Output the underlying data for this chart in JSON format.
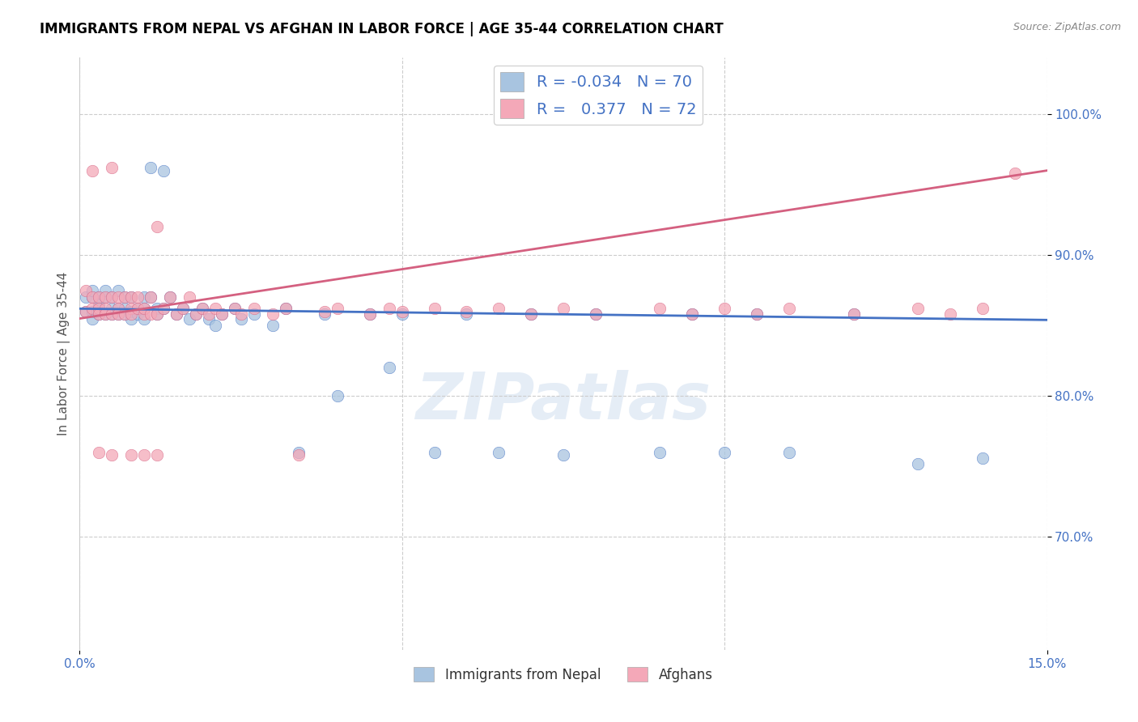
{
  "title": "IMMIGRANTS FROM NEPAL VS AFGHAN IN LABOR FORCE | AGE 35-44 CORRELATION CHART",
  "source": "Source: ZipAtlas.com",
  "ylabel": "In Labor Force | Age 35-44",
  "ytick_values": [
    0.7,
    0.8,
    0.9,
    1.0
  ],
  "xlim": [
    0.0,
    0.15
  ],
  "ylim": [
    0.62,
    1.04
  ],
  "legend_nepal_R": "-0.034",
  "legend_nepal_N": "70",
  "legend_afghan_R": "0.377",
  "legend_afghan_N": "72",
  "nepal_color": "#a8c4e0",
  "afghan_color": "#f4a8b8",
  "nepal_line_color": "#4472c4",
  "afghan_line_color": "#d46080",
  "watermark": "ZIPatlas",
  "nepal_x": [
    0.001,
    0.001,
    0.002,
    0.002,
    0.002,
    0.002,
    0.003,
    0.003,
    0.003,
    0.003,
    0.004,
    0.004,
    0.004,
    0.005,
    0.005,
    0.005,
    0.006,
    0.006,
    0.006,
    0.007,
    0.007,
    0.007,
    0.008,
    0.008,
    0.008,
    0.009,
    0.009,
    0.01,
    0.01,
    0.01,
    0.011,
    0.011,
    0.012,
    0.012,
    0.013,
    0.013,
    0.014,
    0.015,
    0.016,
    0.017,
    0.018,
    0.019,
    0.02,
    0.021,
    0.022,
    0.024,
    0.025,
    0.027,
    0.03,
    0.032,
    0.034,
    0.038,
    0.04,
    0.045,
    0.048,
    0.05,
    0.055,
    0.06,
    0.065,
    0.07,
    0.075,
    0.08,
    0.09,
    0.095,
    0.1,
    0.105,
    0.11,
    0.12,
    0.13,
    0.14
  ],
  "nepal_y": [
    0.86,
    0.87,
    0.87,
    0.86,
    0.875,
    0.855,
    0.87,
    0.865,
    0.858,
    0.862,
    0.87,
    0.858,
    0.875,
    0.862,
    0.87,
    0.858,
    0.862,
    0.875,
    0.858,
    0.87,
    0.862,
    0.858,
    0.86,
    0.87,
    0.855,
    0.862,
    0.858,
    0.87,
    0.862,
    0.855,
    0.962,
    0.87,
    0.862,
    0.858,
    0.96,
    0.862,
    0.87,
    0.858,
    0.862,
    0.855,
    0.858,
    0.862,
    0.855,
    0.85,
    0.858,
    0.862,
    0.855,
    0.858,
    0.85,
    0.862,
    0.76,
    0.858,
    0.8,
    0.858,
    0.82,
    0.858,
    0.76,
    0.858,
    0.76,
    0.858,
    0.758,
    0.858,
    0.76,
    0.858,
    0.76,
    0.858,
    0.76,
    0.858,
    0.752,
    0.756
  ],
  "afghan_x": [
    0.001,
    0.001,
    0.002,
    0.002,
    0.002,
    0.003,
    0.003,
    0.003,
    0.004,
    0.004,
    0.004,
    0.005,
    0.005,
    0.005,
    0.006,
    0.006,
    0.006,
    0.007,
    0.007,
    0.008,
    0.008,
    0.008,
    0.009,
    0.009,
    0.01,
    0.01,
    0.011,
    0.011,
    0.012,
    0.012,
    0.013,
    0.014,
    0.015,
    0.016,
    0.017,
    0.018,
    0.019,
    0.02,
    0.021,
    0.022,
    0.024,
    0.025,
    0.027,
    0.03,
    0.032,
    0.034,
    0.038,
    0.04,
    0.045,
    0.048,
    0.05,
    0.055,
    0.06,
    0.065,
    0.07,
    0.075,
    0.08,
    0.09,
    0.095,
    0.1,
    0.105,
    0.11,
    0.12,
    0.13,
    0.135,
    0.14,
    0.145,
    0.003,
    0.005,
    0.008,
    0.01,
    0.012
  ],
  "afghan_y": [
    0.86,
    0.875,
    0.862,
    0.87,
    0.96,
    0.87,
    0.862,
    0.858,
    0.87,
    0.862,
    0.858,
    0.87,
    0.962,
    0.858,
    0.87,
    0.862,
    0.858,
    0.87,
    0.858,
    0.862,
    0.87,
    0.858,
    0.862,
    0.87,
    0.858,
    0.862,
    0.87,
    0.858,
    0.92,
    0.858,
    0.862,
    0.87,
    0.858,
    0.862,
    0.87,
    0.858,
    0.862,
    0.858,
    0.862,
    0.858,
    0.862,
    0.858,
    0.862,
    0.858,
    0.862,
    0.758,
    0.86,
    0.862,
    0.858,
    0.862,
    0.86,
    0.862,
    0.86,
    0.862,
    0.858,
    0.862,
    0.858,
    0.862,
    0.858,
    0.862,
    0.858,
    0.862,
    0.858,
    0.862,
    0.858,
    0.862,
    0.958,
    0.76,
    0.758,
    0.758,
    0.758,
    0.758
  ]
}
